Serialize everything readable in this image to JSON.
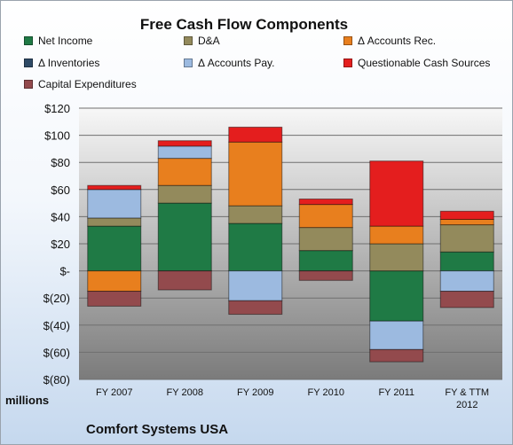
{
  "chart_data": {
    "type": "bar",
    "stacked": true,
    "title": "Free Cash Flow Components",
    "subtitle": "Comfort Systems USA",
    "units_label": "millions",
    "categories": [
      "FY 2007",
      "FY 2008",
      "FY 2009",
      "FY 2010",
      "FY 2011",
      "FY & TTM 2012"
    ],
    "ylim": [
      -80,
      120
    ],
    "yticks": [
      -80,
      -60,
      -40,
      -20,
      0,
      20,
      40,
      60,
      80,
      100,
      120
    ],
    "ytick_labels": [
      "$(80)",
      "$(60)",
      "$(40)",
      "$(20)",
      "$-",
      "$20",
      "$40",
      "$60",
      "$80",
      "$100",
      "$120"
    ],
    "grid": true,
    "legend_position": "top",
    "series": [
      {
        "name": "Net Income",
        "color": "#1f7a45",
        "values": [
          33,
          50,
          35,
          15,
          -37,
          14
        ]
      },
      {
        "name": "D&A",
        "color": "#938a5c",
        "values": [
          6,
          13,
          13,
          17,
          20,
          20
        ]
      },
      {
        "name": "Δ Accounts Rec.",
        "color": "#e87f1e",
        "values": [
          -15,
          20,
          47,
          17,
          13,
          4
        ]
      },
      {
        "name": "Δ Inventories",
        "color": "#2e4a66",
        "values": [
          0,
          0,
          0,
          0,
          0,
          0
        ]
      },
      {
        "name": "Δ Accounts Pay.",
        "color": "#9cbae0",
        "values": [
          21,
          9,
          -22,
          0,
          -21,
          -15
        ]
      },
      {
        "name": "Questionable Cash Sources",
        "color": "#e41e1e",
        "values": [
          3,
          4,
          11,
          4,
          48,
          6
        ]
      },
      {
        "name": "Capital Expenditures",
        "color": "#934a4d",
        "values": [
          -11,
          -14,
          -10,
          -7,
          -9,
          -12
        ]
      }
    ]
  }
}
